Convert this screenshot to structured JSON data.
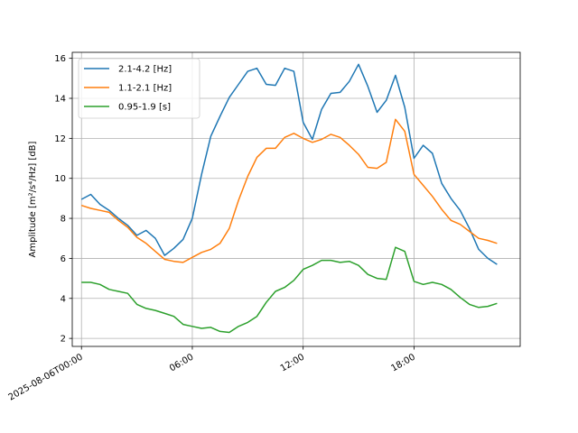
{
  "chart_data": {
    "type": "line",
    "ylabel": "Amplitude [m²/s⁴/Hz] [dB]",
    "xlim": [
      -0.5,
      23.75
    ],
    "ylim": [
      1.6,
      16.3
    ],
    "grid": true,
    "legend": "top-left",
    "x_ticks": [
      {
        "value": 0,
        "label": "2025-08-06T00:00"
      },
      {
        "value": 6,
        "label": "06:00"
      },
      {
        "value": 12,
        "label": "12:00"
      },
      {
        "value": 18,
        "label": "18:00"
      }
    ],
    "y_ticks": [
      2,
      4,
      6,
      8,
      10,
      12,
      14,
      16
    ],
    "x": [
      0,
      0.5,
      1,
      1.5,
      2,
      2.5,
      3,
      3.5,
      4,
      4.5,
      5,
      5.5,
      6,
      6.5,
      7,
      7.5,
      8,
      8.5,
      9,
      9.5,
      10,
      10.5,
      11,
      11.5,
      12,
      12.5,
      13,
      13.5,
      14,
      14.5,
      15,
      15.5,
      16,
      16.5,
      17,
      17.5,
      18,
      18.5,
      19,
      19.5,
      20,
      20.5,
      21,
      21.5,
      22,
      22.5
    ],
    "series": [
      {
        "name": "2.1-4.2 [Hz]",
        "color": "#1f77b4",
        "values": [
          8.95,
          9.2,
          8.7,
          8.4,
          8.0,
          7.65,
          7.15,
          7.4,
          7.0,
          6.15,
          6.5,
          6.95,
          8.0,
          10.2,
          12.1,
          13.1,
          14.05,
          14.7,
          15.35,
          15.5,
          14.7,
          14.65,
          15.5,
          15.35,
          12.8,
          11.95,
          13.45,
          14.25,
          14.3,
          14.85,
          15.7,
          14.6,
          13.3,
          13.9,
          15.15,
          13.55,
          11.0,
          11.65,
          11.25,
          9.75,
          9.0,
          8.4,
          7.5,
          6.45,
          6.0,
          5.7
        ]
      },
      {
        "name": "1.1-2.1 [Hz]",
        "color": "#ff7f0e",
        "values": [
          8.65,
          8.5,
          8.4,
          8.3,
          7.9,
          7.55,
          7.05,
          6.75,
          6.35,
          5.95,
          5.85,
          5.8,
          6.05,
          6.3,
          6.45,
          6.75,
          7.5,
          8.9,
          10.1,
          11.05,
          11.5,
          11.5,
          12.05,
          12.25,
          12.0,
          11.8,
          11.95,
          12.2,
          12.05,
          11.65,
          11.2,
          10.55,
          10.5,
          10.8,
          12.95,
          12.35,
          10.2,
          9.65,
          9.1,
          8.45,
          7.9,
          7.7,
          7.35,
          7.0,
          6.9,
          6.75
        ]
      },
      {
        "name": "0.95-1.9 [s]",
        "color": "#2ca02c",
        "values": [
          4.8,
          4.8,
          4.7,
          4.45,
          4.35,
          4.25,
          3.7,
          3.5,
          3.4,
          3.25,
          3.1,
          2.7,
          2.6,
          2.5,
          2.55,
          2.35,
          2.3,
          2.6,
          2.8,
          3.1,
          3.8,
          4.35,
          4.55,
          4.9,
          5.45,
          5.65,
          5.9,
          5.9,
          5.8,
          5.85,
          5.65,
          5.2,
          5.0,
          4.95,
          6.55,
          6.35,
          4.85,
          4.7,
          4.8,
          4.7,
          4.45,
          4.05,
          3.7,
          3.55,
          3.6,
          3.75
        ]
      }
    ]
  }
}
